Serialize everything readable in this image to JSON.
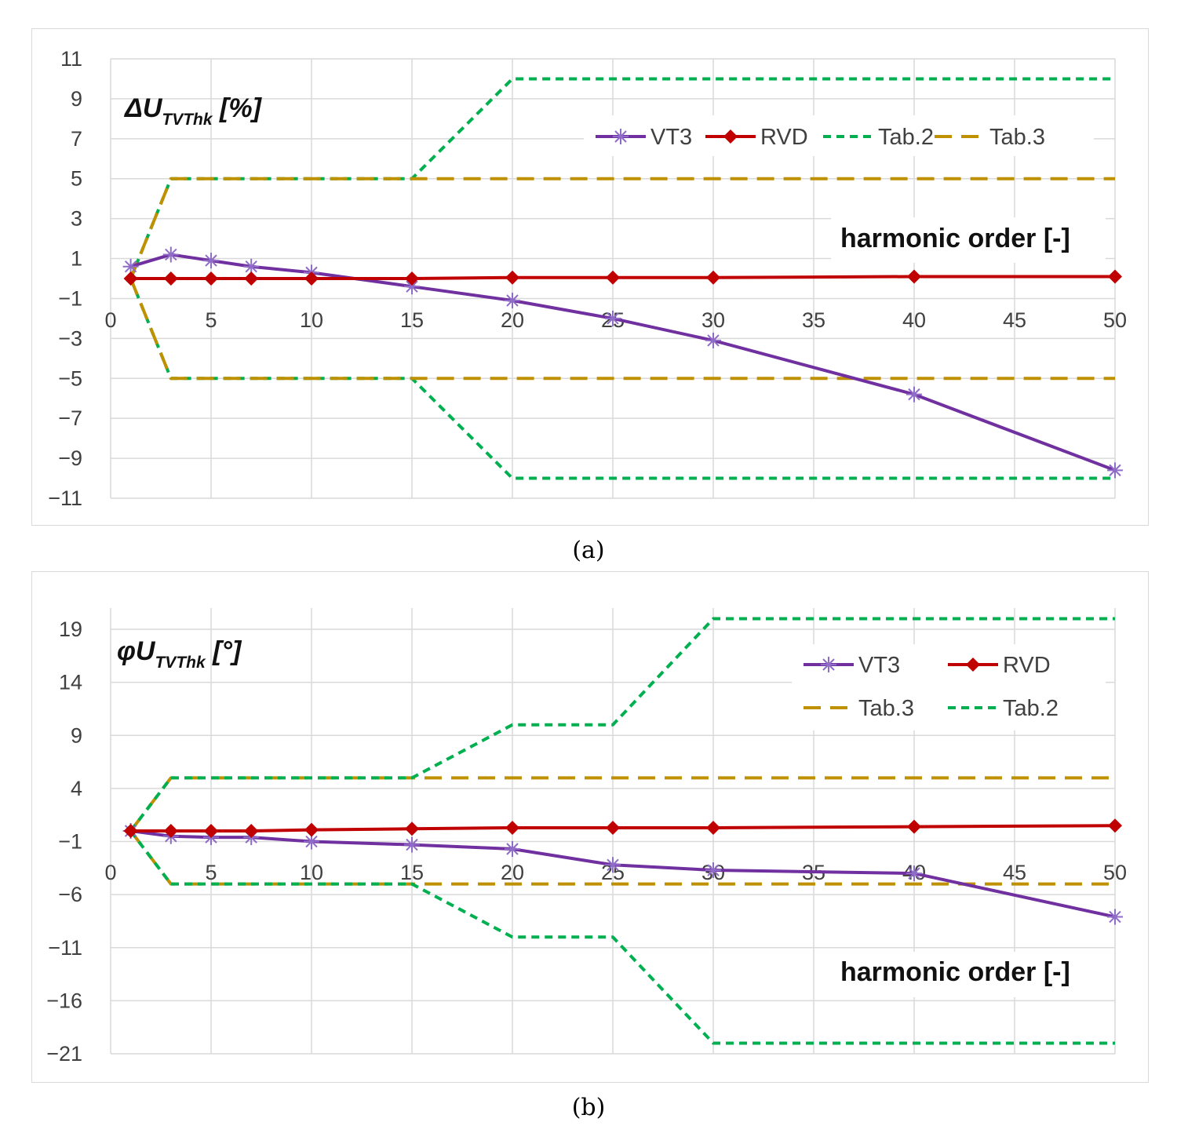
{
  "chart_data": [
    {
      "type": "line",
      "title": "",
      "ylabel_prefix": "ΔU",
      "ylabel_subscript": "TVThk",
      "ylabel_suffix": " [%]",
      "xlabel": "harmonic order [-]",
      "xlim": [
        0,
        50
      ],
      "ylim": [
        -11,
        11
      ],
      "xticks": [
        "0",
        "5",
        "10",
        "15",
        "20",
        "25",
        "30",
        "35",
        "40",
        "45",
        "50"
      ],
      "yticks": [
        "11",
        "9",
        "7",
        "5",
        "3",
        "1",
        "−1",
        "−3",
        "−5",
        "−7",
        "−9",
        "−11"
      ],
      "grid": true,
      "legend": "top-right",
      "series": [
        {
          "name": "VT3",
          "color": "#7030a0",
          "dash": "solid",
          "marker": "asterisk",
          "x": [
            1,
            3,
            5,
            7,
            10,
            15,
            20,
            25,
            30,
            40,
            50
          ],
          "y": [
            0.6,
            1.2,
            0.9,
            0.6,
            0.3,
            -0.4,
            -1.1,
            -2.0,
            -3.1,
            -5.8,
            -9.6
          ]
        },
        {
          "name": "RVD",
          "color": "#c00000",
          "dash": "solid",
          "marker": "diamond",
          "x": [
            1,
            3,
            5,
            7,
            10,
            15,
            20,
            25,
            30,
            40,
            50
          ],
          "y": [
            0.0,
            0.0,
            0.0,
            0.0,
            0.0,
            0.0,
            0.05,
            0.05,
            0.05,
            0.1,
            0.1
          ]
        },
        {
          "name": "Tab.2",
          "color": "#00b050",
          "dash": "short",
          "marker": "none",
          "x": [
            1,
            3,
            15,
            20,
            50
          ],
          "y": [
            0,
            5,
            5,
            10,
            10
          ],
          "x_lower": [
            1,
            3,
            15,
            20,
            50
          ],
          "y_lower": [
            0,
            -5,
            -5,
            -10,
            -10
          ]
        },
        {
          "name": "Tab.3",
          "color": "#bf9000",
          "dash": "long",
          "marker": "none",
          "x": [
            1,
            3,
            50
          ],
          "y": [
            0,
            5,
            5
          ],
          "x_lower": [
            1,
            3,
            50
          ],
          "y_lower": [
            0,
            -5,
            -5
          ]
        }
      ],
      "legend_order": [
        "VT3",
        "RVD",
        "Tab.2",
        "Tab.3"
      ],
      "caption": "(a)"
    },
    {
      "type": "line",
      "title": "",
      "ylabel_prefix": "φU",
      "ylabel_subscript": "TVThk",
      "ylabel_suffix": " [°]",
      "xlabel": "harmonic order [-]",
      "xlim": [
        0,
        50
      ],
      "ylim": [
        -21,
        21
      ],
      "xticks": [
        "0",
        "5",
        "10",
        "15",
        "20",
        "25",
        "30",
        "35",
        "40",
        "45",
        "50"
      ],
      "yticks": [
        "19",
        "14",
        "9",
        "4",
        "−1",
        "−6",
        "−11",
        "−16",
        "−21"
      ],
      "grid": true,
      "legend": "top-right",
      "series": [
        {
          "name": "VT3",
          "color": "#7030a0",
          "dash": "solid",
          "marker": "asterisk",
          "x": [
            1,
            3,
            5,
            7,
            10,
            15,
            20,
            25,
            30,
            40,
            50
          ],
          "y": [
            0,
            -0.5,
            -0.6,
            -0.6,
            -1.0,
            -1.3,
            -1.7,
            -3.2,
            -3.7,
            -4.0,
            -8.1
          ]
        },
        {
          "name": "RVD",
          "color": "#c00000",
          "dash": "solid",
          "marker": "diamond",
          "x": [
            1,
            3,
            5,
            7,
            10,
            15,
            20,
            25,
            30,
            40,
            50
          ],
          "y": [
            0,
            0,
            0,
            0,
            0.1,
            0.2,
            0.3,
            0.3,
            0.3,
            0.4,
            0.5
          ]
        },
        {
          "name": "Tab.3",
          "color": "#bf9000",
          "dash": "long",
          "marker": "none",
          "x": [
            1,
            3,
            50
          ],
          "y": [
            0,
            5,
            5
          ],
          "x_lower": [
            1,
            3,
            50
          ],
          "y_lower": [
            0,
            -5,
            -5
          ]
        },
        {
          "name": "Tab.2",
          "color": "#00b050",
          "dash": "short",
          "marker": "none",
          "x": [
            1,
            3,
            15,
            20,
            25,
            30,
            50
          ],
          "y": [
            0,
            5,
            5,
            10,
            10,
            20,
            20
          ],
          "x_lower": [
            1,
            3,
            15,
            20,
            25,
            30,
            50
          ],
          "y_lower": [
            0,
            -5,
            -5,
            -10,
            -10,
            -20,
            -20
          ]
        }
      ],
      "legend_order": [
        "VT3",
        "RVD",
        "Tab.3",
        "Tab.2"
      ],
      "caption": "(b)"
    }
  ]
}
